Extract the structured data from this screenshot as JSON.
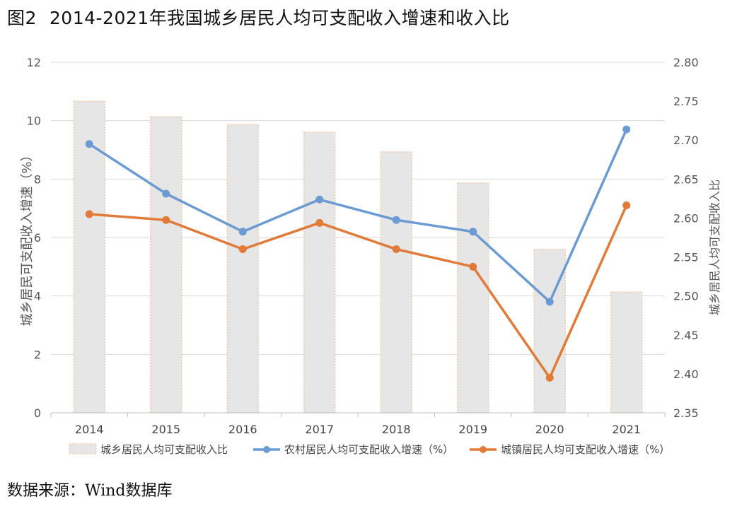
{
  "figure": {
    "number": "图2",
    "title": "2014-2021年我国城乡居民人均可支配收入增速和收入比"
  },
  "source": "数据来源：Wind数据库",
  "chart_data": {
    "type": "bar",
    "categories": [
      "2014",
      "2015",
      "2016",
      "2017",
      "2018",
      "2019",
      "2020",
      "2021"
    ],
    "series": [
      {
        "name": "城乡居民人均可支配收入比",
        "type": "bar",
        "axis": "right",
        "values": [
          2.75,
          2.73,
          2.72,
          2.71,
          2.685,
          2.645,
          2.56,
          2.505
        ]
      },
      {
        "name": "农村居民人均可支配收入增速（%）",
        "type": "line",
        "axis": "left",
        "values": [
          9.2,
          7.5,
          6.2,
          7.3,
          6.6,
          6.2,
          3.8,
          9.7
        ]
      },
      {
        "name": "城镇居民人均可支配收入增速（%）",
        "type": "line",
        "axis": "left",
        "values": [
          6.8,
          6.6,
          5.6,
          6.5,
          5.6,
          5.0,
          1.2,
          7.1
        ]
      }
    ],
    "ylabel": "城乡居民可支配收入增速（%）",
    "y2label": "城乡居民人均可支配收入比",
    "ylim": [
      0,
      12
    ],
    "y2lim": [
      2.35,
      2.8
    ],
    "yticks": [
      "0",
      "2",
      "4",
      "6",
      "8",
      "10",
      "12"
    ],
    "y2ticks": [
      "2.35",
      "2.40",
      "2.45",
      "2.50",
      "2.55",
      "2.60",
      "2.65",
      "2.70",
      "2.75",
      "2.80"
    ],
    "grid": true,
    "legend": "bottom",
    "colors": {
      "bar": "#e6e6e6",
      "bar_border": "#f2c9a6",
      "rural": "#6b9bd2",
      "urban": "#e07b39",
      "grid": "#d9d9d9"
    }
  }
}
